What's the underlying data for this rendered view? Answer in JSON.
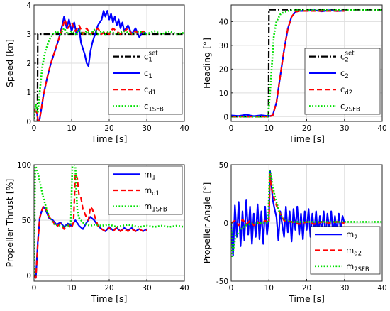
{
  "chart_data": [
    {
      "id": "speed",
      "type": "line",
      "xlabel": "Time [s]",
      "ylabel": "Speed [kn]",
      "xlim": [
        0,
        40
      ],
      "ylim": [
        0,
        4
      ],
      "xticks": [
        0,
        10,
        20,
        30,
        40
      ],
      "yticks": [
        0,
        1,
        2,
        3,
        4
      ],
      "grid": true,
      "legend_position": "lower-right",
      "series": [
        {
          "name": "c",
          "sub": "1",
          "sup": "set",
          "color": "#000000",
          "style": "dashdot",
          "x": [
            0,
            0.9,
            1.0,
            6,
            8,
            10,
            12,
            14,
            16,
            18,
            20,
            22,
            24,
            26,
            28,
            30,
            35,
            40
          ],
          "y": [
            0,
            0,
            3.0,
            3,
            3,
            3,
            3,
            3,
            3,
            3,
            3,
            3,
            3,
            3,
            3,
            3,
            3,
            3
          ]
        },
        {
          "name": "c",
          "sub": "1",
          "color": "#0000ff",
          "style": "solid",
          "x": [
            0,
            0.8,
            1.2,
            1.8,
            2.5,
            3.5,
            4.5,
            5.5,
            6.5,
            7.5,
            8.0,
            8.7,
            9.3,
            10,
            10.7,
            11.3,
            12,
            12.5,
            13,
            13.5,
            14,
            14.5,
            15,
            15.5,
            16,
            17,
            18,
            18.5,
            19,
            19.5,
            20,
            20.5,
            21,
            21.5,
            22,
            22.5,
            23,
            23.5,
            24,
            25,
            26,
            27,
            28,
            29,
            30
          ],
          "y": [
            0.4,
            0.3,
            -0.15,
            0.3,
            0.9,
            1.5,
            2.0,
            2.4,
            2.8,
            3.3,
            3.6,
            3.2,
            3.5,
            3.1,
            3.4,
            3.0,
            3.2,
            2.7,
            2.5,
            2.3,
            2.0,
            1.9,
            2.4,
            2.7,
            2.9,
            3.3,
            3.5,
            3.8,
            3.6,
            3.8,
            3.5,
            3.7,
            3.4,
            3.6,
            3.3,
            3.5,
            3.2,
            3.4,
            3.1,
            3.3,
            3.0,
            3.2,
            2.9,
            3.1,
            3.0
          ]
        },
        {
          "name": "c",
          "sub": "d1",
          "color": "#ff0000",
          "style": "dashed",
          "x": [
            0,
            0.8,
            1.2,
            1.8,
            2.5,
            3.5,
            4.5,
            5.5,
            6.5,
            7.5,
            8.2,
            9,
            10,
            11,
            12,
            13,
            14,
            15,
            16,
            17,
            18,
            19,
            20,
            21,
            22,
            23,
            24,
            25,
            26,
            27,
            28,
            29,
            30
          ],
          "y": [
            0.4,
            0.3,
            -0.1,
            0.3,
            0.9,
            1.5,
            2.0,
            2.4,
            2.8,
            3.2,
            3.5,
            3.2,
            3.4,
            3.1,
            3.3,
            3.0,
            3.2,
            3.0,
            3.1,
            3.2,
            3.0,
            3.1,
            3.0,
            3.2,
            3.1,
            3.0,
            3.1,
            3.2,
            3.0,
            3.1,
            3.0,
            3.1,
            3.0
          ]
        },
        {
          "name": "c",
          "sub": "1SFB",
          "color": "#00e000",
          "style": "dotted",
          "x": [
            0,
            0.5,
            1.0,
            1.5,
            2.2,
            3,
            4,
            5,
            6,
            7,
            8,
            9,
            10,
            11,
            12,
            13,
            14,
            15,
            16,
            17,
            18,
            19,
            20,
            22,
            24,
            26,
            28,
            30,
            32,
            34,
            36,
            38,
            40
          ],
          "y": [
            0.1,
            0.6,
            0.3,
            1.0,
            1.9,
            2.4,
            2.8,
            3.0,
            3.1,
            3.0,
            3.2,
            3.0,
            3.1,
            3.0,
            3.15,
            3.0,
            3.1,
            3.0,
            3.15,
            3.0,
            3.1,
            3.0,
            3.1,
            3.0,
            3.1,
            3.0,
            3.1,
            3.0,
            3.1,
            3.0,
            3.1,
            3.0,
            3.05
          ]
        }
      ]
    },
    {
      "id": "heading",
      "type": "line",
      "xlabel": "Time [s]",
      "ylabel": "Heading [°]",
      "xlim": [
        0,
        40
      ],
      "ylim": [
        -2,
        47
      ],
      "xticks": [
        0,
        10,
        20,
        30,
        40
      ],
      "yticks": [
        0,
        10,
        20,
        30,
        40
      ],
      "grid": true,
      "legend_position": "lower-right",
      "series": [
        {
          "name": "c",
          "sub": "2",
          "sup": "set",
          "color": "#000000",
          "style": "dashdot",
          "x": [
            0,
            9.9,
            10.0,
            40
          ],
          "y": [
            0,
            0,
            45,
            45
          ]
        },
        {
          "name": "c",
          "sub": "2",
          "color": "#0000ff",
          "style": "solid",
          "x": [
            0,
            2,
            4,
            6,
            8,
            10,
            11,
            12,
            13,
            14,
            15,
            16,
            17,
            18,
            20,
            22,
            24,
            26,
            28,
            30
          ],
          "y": [
            0.5,
            0.3,
            0.8,
            0.2,
            0.6,
            0.2,
            0.5,
            6,
            17,
            28,
            37,
            42,
            44,
            44.5,
            44.5,
            44.8,
            44.3,
            44.8,
            44.4,
            44.6
          ]
        },
        {
          "name": "c",
          "sub": "d2",
          "color": "#ff0000",
          "style": "dashed",
          "x": [
            0,
            10,
            11,
            12,
            13,
            14,
            15,
            16,
            17,
            18,
            20,
            24,
            30
          ],
          "y": [
            0,
            0,
            0.5,
            6,
            17,
            28,
            37,
            42,
            44,
            44.5,
            44.5,
            44.5,
            44.5
          ]
        },
        {
          "name": "c",
          "sub": "2SFB",
          "color": "#00e000",
          "style": "dotted",
          "x": [
            0,
            2,
            4,
            6,
            8,
            9.8,
            10.3,
            10.8,
            11.3,
            12,
            13,
            14,
            15,
            16,
            18,
            20,
            25,
            30,
            35,
            40
          ],
          "y": [
            0,
            0,
            0,
            0,
            0,
            0,
            10,
            22,
            34,
            40,
            43,
            44,
            44.5,
            44.7,
            45,
            44.8,
            45,
            45,
            45,
            45
          ]
        }
      ]
    },
    {
      "id": "thrust",
      "type": "line",
      "xlabel": "Time [s]",
      "ylabel": "Propeller Thrust [%]",
      "xlim": [
        0,
        40
      ],
      "ylim": [
        -5,
        100
      ],
      "xticks": [
        0,
        10,
        20,
        30,
        40
      ],
      "yticks": [
        0,
        50,
        100
      ],
      "grid": true,
      "legend_position": "upper-right",
      "series": [
        {
          "name": "m",
          "sub": "1",
          "color": "#0000ff",
          "style": "solid",
          "x": [
            0,
            0.5,
            1.0,
            1.5,
            2.0,
            2.5,
            3.0,
            3.5,
            4,
            5,
            6,
            7,
            8,
            9,
            10,
            11,
            12,
            13,
            14,
            15,
            16,
            17,
            18,
            19,
            20,
            21,
            22,
            23,
            24,
            25,
            26,
            27,
            28,
            29,
            30
          ],
          "y": [
            0,
            -2,
            30,
            52,
            58,
            62,
            60,
            56,
            52,
            50,
            46,
            48,
            44,
            47,
            45,
            50,
            45,
            42,
            48,
            53,
            50,
            45,
            42,
            40,
            44,
            41,
            43,
            40,
            43,
            41,
            43,
            40,
            42,
            40,
            42
          ]
        },
        {
          "name": "m",
          "sub": "d1",
          "color": "#ff0000",
          "style": "dashed",
          "x": [
            0,
            0.5,
            1.0,
            1.5,
            2.0,
            2.5,
            3.0,
            3.5,
            4,
            5,
            6,
            7,
            8,
            9,
            10,
            10.5,
            11,
            11.5,
            12,
            12.5,
            13,
            13.5,
            14,
            14.5,
            15,
            15.5,
            16,
            17,
            18,
            19,
            20,
            21,
            22,
            23,
            24,
            25,
            26,
            27,
            28,
            29,
            30
          ],
          "y": [
            0,
            -2,
            28,
            52,
            58,
            63,
            62,
            57,
            53,
            49,
            44,
            47,
            42,
            46,
            43,
            48,
            92,
            88,
            72,
            70,
            60,
            56,
            52,
            50,
            62,
            60,
            55,
            45,
            42,
            40,
            43,
            40,
            43,
            40,
            42,
            40,
            42,
            40,
            42,
            40,
            41
          ]
        },
        {
          "name": "m",
          "sub": "1SFB",
          "color": "#00e000",
          "style": "dotted",
          "x": [
            0,
            0.3,
            1.0,
            1.5,
            2.5,
            3.5,
            4.5,
            5.5,
            7,
            8,
            9,
            9.8,
            10.2,
            10.6,
            11,
            11.5,
            12,
            13,
            14,
            15,
            16,
            18,
            20,
            22,
            25,
            28,
            30,
            32,
            34,
            36,
            38,
            40
          ],
          "y": [
            0,
            100,
            93,
            85,
            70,
            58,
            50,
            46,
            45,
            44,
            45,
            47,
            100,
            101,
            98,
            60,
            52,
            48,
            46,
            45,
            46,
            45,
            46,
            44,
            46,
            44,
            45,
            44,
            45,
            44,
            45,
            44
          ]
        }
      ]
    },
    {
      "id": "angle",
      "type": "line",
      "xlabel": "Time [s]",
      "ylabel": "Propeller Angle [°]",
      "xlim": [
        0,
        40
      ],
      "ylim": [
        -50,
        50
      ],
      "xticks": [
        0,
        10,
        20,
        30,
        40
      ],
      "yticks": [
        -50,
        0,
        50
      ],
      "grid": true,
      "legend_position": "lower-right",
      "series": [
        {
          "name": "m",
          "sub": "2",
          "color": "#0000ff",
          "style": "solid",
          "x": [
            0,
            0.5,
            1,
            1.5,
            2,
            2.5,
            3,
            3.5,
            4,
            4.5,
            5,
            5.5,
            6,
            6.5,
            7,
            7.5,
            8,
            8.5,
            9,
            9.5,
            10,
            10.3,
            10.6,
            11,
            11.5,
            12,
            12.5,
            13,
            14,
            14.5,
            15,
            15.5,
            16,
            16.5,
            17,
            17.5,
            18,
            18.5,
            19,
            19.5,
            20,
            20.5,
            21,
            21.5,
            22,
            22.5,
            23,
            23.5,
            24,
            24.5,
            25,
            25.5,
            26,
            26.5,
            27,
            27.5,
            28,
            28.5,
            29,
            29.5,
            30
          ],
          "y": [
            0,
            -28,
            15,
            -12,
            18,
            -20,
            10,
            -15,
            20,
            -10,
            14,
            -18,
            8,
            -12,
            16,
            -14,
            10,
            -18,
            14,
            -10,
            5,
            45,
            35,
            20,
            12,
            5,
            -15,
            10,
            -12,
            14,
            -8,
            10,
            -16,
            12,
            -6,
            14,
            -10,
            8,
            -14,
            10,
            -6,
            12,
            -12,
            8,
            -8,
            10,
            -14,
            6,
            -8,
            10,
            -12,
            8,
            -6,
            10,
            -10,
            6,
            -8,
            8,
            -6,
            6,
            0
          ]
        },
        {
          "name": "m",
          "sub": "d2",
          "color": "#ff0000",
          "style": "dashed",
          "x": [
            0,
            1,
            2,
            3,
            4,
            5,
            6,
            7,
            8,
            9,
            10,
            10.3,
            10.6,
            11,
            12,
            13,
            14,
            16,
            18,
            20,
            22,
            24,
            26,
            28,
            30
          ],
          "y": [
            0,
            2,
            -2,
            3,
            -1,
            2,
            -2,
            1,
            -1,
            2,
            0,
            42,
            32,
            25,
            15,
            8,
            2,
            1,
            -1,
            1,
            -1,
            1,
            0,
            1,
            0
          ]
        },
        {
          "name": "m",
          "sub": "2SFB",
          "color": "#00e000",
          "style": "dotted",
          "x": [
            0,
            0.3,
            0.7,
            1.2,
            2,
            3,
            4,
            5,
            6,
            7,
            8,
            9,
            9.8,
            10.2,
            10.5,
            11,
            11.5,
            12,
            12.5,
            13,
            14,
            15,
            16,
            18,
            20,
            25,
            30,
            35,
            40
          ],
          "y": [
            0,
            -30,
            -20,
            -12,
            -8,
            -4,
            -2,
            -1,
            0,
            0,
            0,
            0,
            0,
            45,
            42,
            32,
            24,
            18,
            12,
            7,
            3,
            2,
            1,
            1,
            1,
            1,
            1,
            1,
            1
          ]
        }
      ]
    }
  ]
}
